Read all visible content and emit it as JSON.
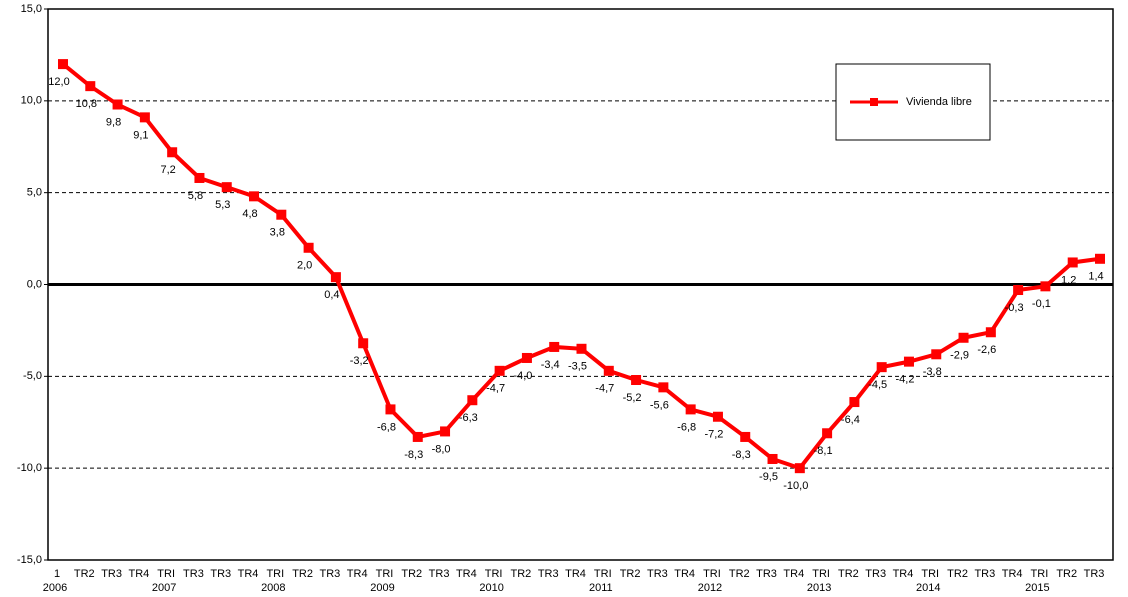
{
  "chart_data": {
    "type": "line",
    "categories": [
      "1",
      "TR2",
      "TR3",
      "TR4",
      "TRI",
      "TR3",
      "TR3",
      "TR4",
      "TRI",
      "TR2",
      "TR3",
      "TR4",
      "TRI",
      "TR2",
      "TR3",
      "TR4",
      "TRI",
      "TR2",
      "TR3",
      "TR4",
      "TRI",
      "TR2",
      "TR3",
      "TR4",
      "TRI",
      "TR2",
      "TR3",
      "TR4",
      "TRI",
      "TR2",
      "TR3",
      "TR4",
      "TRI",
      "TR2",
      "TR3",
      "TR4",
      "TRI",
      "TR2",
      "TR3"
    ],
    "years": [
      "2006",
      "2007",
      "2008",
      "2009",
      "2010",
      "2011",
      "2012",
      "2013",
      "2014",
      "2015"
    ],
    "series": [
      {
        "name": "Vivienda libre",
        "color": "#ff0000",
        "values": [
          12.0,
          10.8,
          9.8,
          9.1,
          7.2,
          5.8,
          5.3,
          4.8,
          3.8,
          2.0,
          0.4,
          -3.2,
          -6.8,
          -8.3,
          -8.0,
          -6.3,
          -4.7,
          -4.0,
          -3.4,
          -3.5,
          -4.7,
          -5.2,
          -5.6,
          -6.8,
          -7.2,
          -8.3,
          -9.5,
          -10.0,
          -8.1,
          -6.4,
          -4.5,
          -4.2,
          -3.8,
          -2.9,
          -2.6,
          -0.3,
          -0.1,
          1.2,
          1.4
        ],
        "value_labels": [
          "12,0",
          "10,8",
          "9,8",
          "9,1",
          "7,2",
          "5,8",
          "5,3",
          "4,8",
          "3,8",
          "2,0",
          "0,4",
          "-3,2",
          "-6,8",
          "-8,3",
          "-8,0",
          "-6,3",
          "-4,7",
          "-4,0",
          "-3,4",
          "-3,5",
          "-4,7",
          "-5,2",
          "-5,6",
          "-6,8",
          "-7,2",
          "-8,3",
          "-9,5",
          "-10,0",
          "-8,1",
          "-6,4",
          "-4,5",
          "-4,2",
          "-3,8",
          "-2,9",
          "-2,6",
          "-0,3",
          "-0,1",
          "1,2",
          "1,4"
        ]
      }
    ],
    "ylim": [
      -15,
      15
    ],
    "yticks": [
      {
        "value": -15,
        "label": "-15,0"
      },
      {
        "value": -10,
        "label": "-10,0"
      },
      {
        "value": -5,
        "label": "-5,0"
      },
      {
        "value": 0,
        "label": "0,0"
      },
      {
        "value": 5,
        "label": "5,0"
      },
      {
        "value": 10,
        "label": "10,0"
      },
      {
        "value": 15,
        "label": "15,0"
      }
    ],
    "grid": true,
    "legend": "upper right"
  }
}
